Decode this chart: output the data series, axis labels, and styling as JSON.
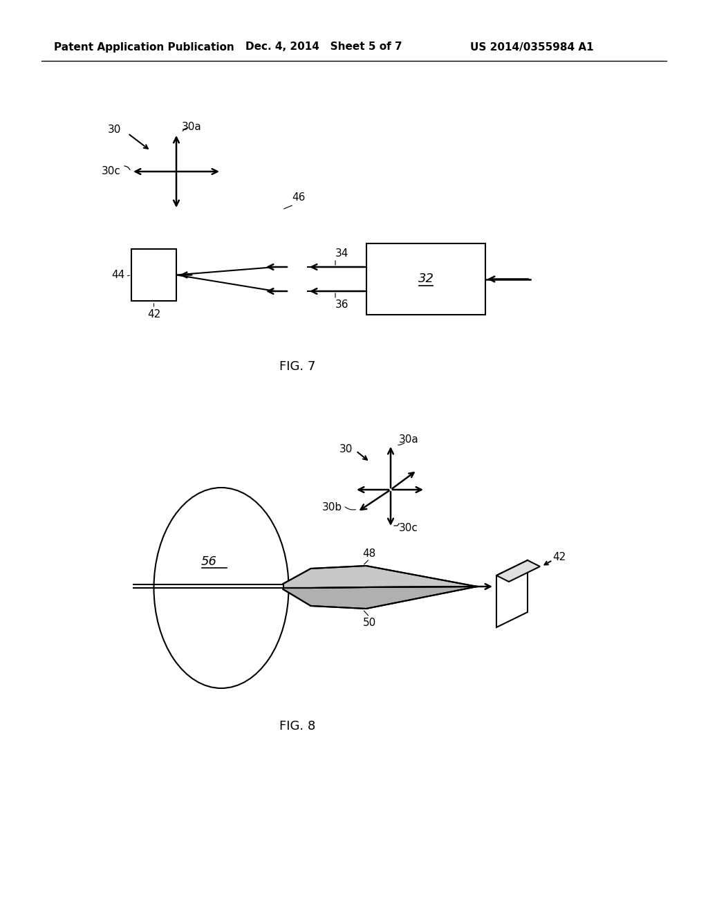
{
  "header_left": "Patent Application Publication",
  "header_mid": "Dec. 4, 2014   Sheet 5 of 7",
  "header_right": "US 2014/0355984 A1",
  "bg_color": "#ffffff",
  "line_color": "#000000",
  "linewidth": 1.5,
  "arrow_linewidth": 1.8,
  "fig7_caption": "FIG. 7",
  "fig8_caption": "FIG. 8"
}
